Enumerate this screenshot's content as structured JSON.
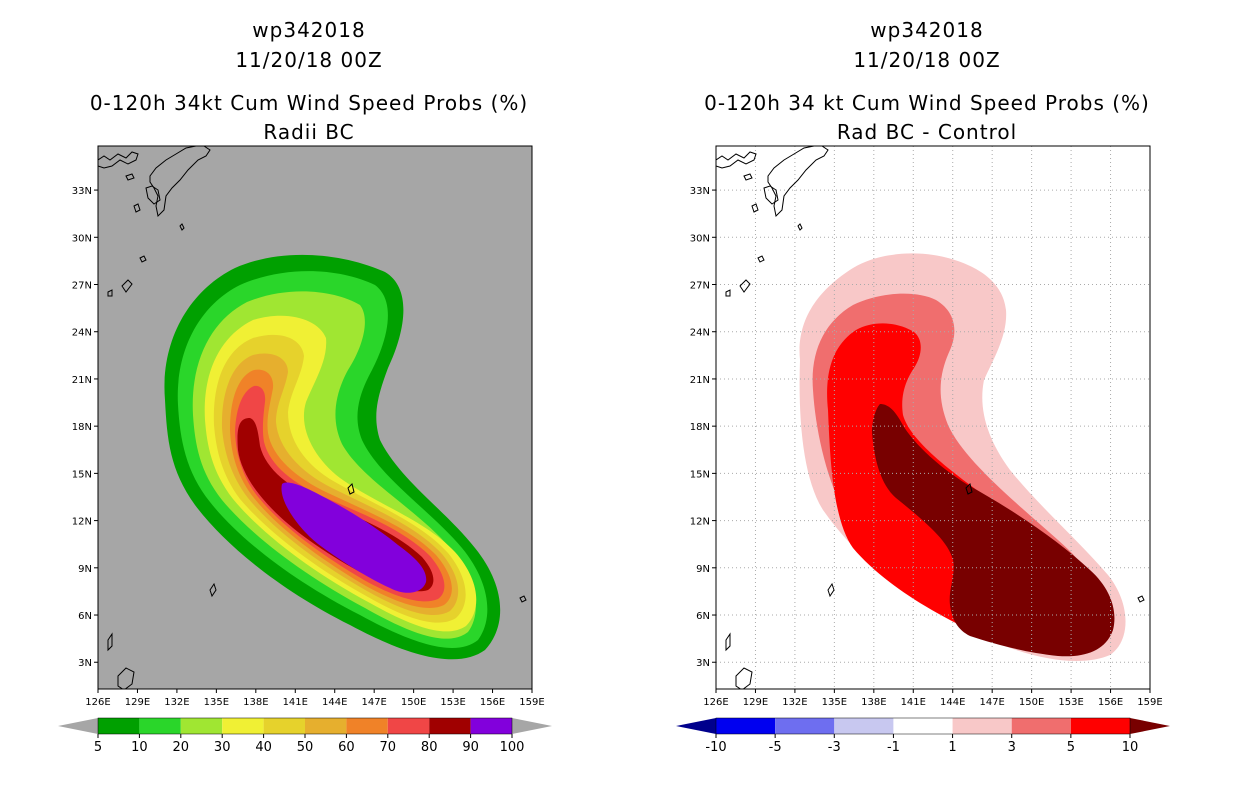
{
  "left_panel": {
    "title_line1": "wp342018",
    "title_line2": "11/20/18 00Z",
    "title_line3": "0-120h 34kt Cum Wind Speed Probs (%)",
    "title_line4": "Radii BC",
    "colorbar": {
      "labels": [
        "5",
        "10",
        "20",
        "30",
        "40",
        "50",
        "60",
        "70",
        "80",
        "90",
        "100"
      ],
      "colors": [
        "#00a000",
        "#2ad62a",
        "#a0e632",
        "#f0f034",
        "#e6d22c",
        "#e6af2e",
        "#f08228",
        "#f04646",
        "#a00000",
        "#8200dc"
      ],
      "end_color": "#a6a6a6"
    },
    "background": "#a6a6a6"
  },
  "right_panel": {
    "title_line1": "wp342018",
    "title_line2": "11/20/18 00Z",
    "title_line3": "0-120h 34 kt Cum Wind Speed Probs (%)",
    "title_line4": "Rad BC - Control",
    "colorbar": {
      "labels": [
        "-10",
        "-5",
        "-3",
        "-1",
        "1",
        "3",
        "5",
        "10"
      ],
      "colors": [
        "#0000f0",
        "#6e6ef0",
        "#c8c8f0",
        "#ffffff",
        "#f8c8c8",
        "#f06e6e",
        "#ff0000"
      ],
      "low_end_color": "#00008c",
      "high_end_color": "#780000"
    },
    "background": "#ffffff"
  },
  "map_axes": {
    "lon_labels": [
      "126E",
      "129E",
      "132E",
      "135E",
      "138E",
      "141E",
      "144E",
      "147E",
      "150E",
      "153E",
      "156E",
      "159E"
    ],
    "lat_labels": [
      "3N",
      "6N",
      "9N",
      "12N",
      "15N",
      "18N",
      "21N",
      "24N",
      "27N",
      "30N",
      "33N"
    ],
    "lon_range": [
      126,
      159
    ],
    "lat_range": [
      1.3,
      35.8
    ]
  }
}
